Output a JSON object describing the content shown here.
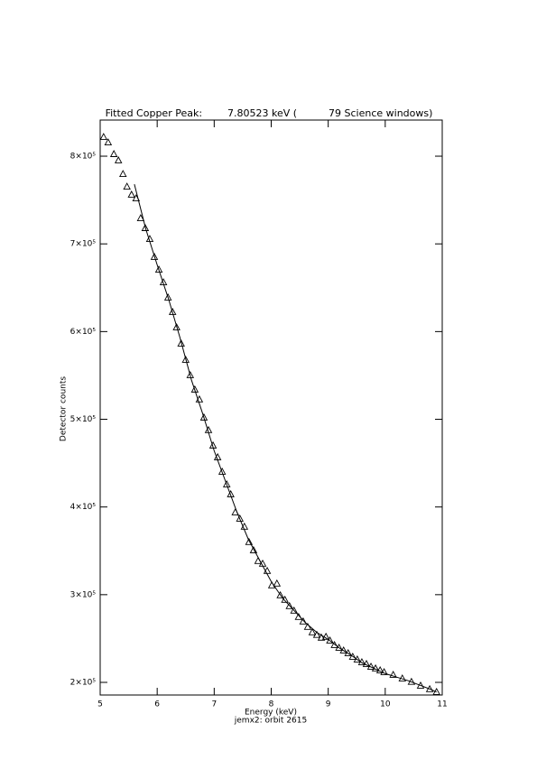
{
  "chart_data": {
    "type": "scatter",
    "title": "Fitted Copper Peak:        7.80523 keV (          79 Science windows)",
    "x_label": "Energy (keV)",
    "caption": "jemx2: orbit 2615",
    "y_label": "Detector counts",
    "xlim": [
      5,
      11
    ],
    "xticks": [
      5,
      6,
      7,
      8,
      9,
      10,
      11
    ],
    "ylim": [
      185600,
      841200
    ],
    "yticks": [
      {
        "value": 200000,
        "label": "2×10⁵"
      },
      {
        "value": 300000,
        "label": "3×10⁵"
      },
      {
        "value": 400000,
        "label": "4×10⁵"
      },
      {
        "value": 500000,
        "label": "5×10⁵"
      },
      {
        "value": 600000,
        "label": "6×10⁵"
      },
      {
        "value": 700000,
        "label": "7×10⁵"
      },
      {
        "value": 800000,
        "label": "8×10⁵"
      }
    ],
    "series": [
      {
        "marker": "triangle",
        "color": "#000000",
        "x": [
          5.06,
          5.14,
          5.24,
          5.32,
          5.4,
          5.47,
          5.55,
          5.63,
          5.71,
          5.79,
          5.87,
          5.95,
          6.03,
          6.11,
          6.19,
          6.27,
          6.34,
          6.42,
          6.5,
          6.58,
          6.66,
          6.74,
          6.82,
          6.9,
          6.98,
          7.06,
          7.14,
          7.22,
          7.29,
          7.37,
          7.45,
          7.53,
          7.61,
          7.69,
          7.77,
          7.85,
          7.93,
          8.01,
          8.1,
          8.16,
          8.24,
          8.32,
          8.4,
          8.48,
          8.56,
          8.64,
          8.72,
          8.8,
          8.88,
          8.96,
          9.03,
          9.11,
          9.19,
          9.27,
          9.35,
          9.43,
          9.51,
          9.59,
          9.67,
          9.75,
          9.83,
          9.91,
          9.98,
          10.14,
          10.3,
          10.46,
          10.62,
          10.78,
          10.9
        ],
        "values": [
          821600,
          815400,
          802100,
          794900,
          779400,
          765000,
          755800,
          751600,
          729000,
          717700,
          705300,
          684800,
          670300,
          655900,
          638500,
          622000,
          604500,
          586000,
          567500,
          550000,
          533600,
          522300,
          501700,
          487300,
          469800,
          456400,
          439900,
          425500,
          414200,
          393600,
          386400,
          377200,
          359700,
          350400,
          338100,
          335000,
          326800,
          310300,
          312400,
          299000,
          293900,
          286700,
          281500,
          274300,
          269200,
          263000,
          256800,
          253800,
          250700,
          251700,
          247400,
          242300,
          239200,
          236100,
          233000,
          228900,
          225800,
          222700,
          220700,
          217600,
          215600,
          213500,
          211400,
          208300,
          204200,
          200300,
          196000,
          192000,
          188800
        ]
      },
      {
        "style": "line",
        "color": "#000000",
        "x": [
          5.6,
          5.8,
          6.0,
          6.2,
          6.4,
          6.6,
          6.8,
          7.0,
          7.2,
          7.4,
          7.6,
          7.8,
          8.0,
          8.2,
          8.4,
          8.6,
          8.8,
          9.0,
          9.2,
          9.4,
          9.6,
          9.8,
          10.0,
          10.2,
          10.4,
          10.6,
          10.8,
          10.9
        ],
        "values": [
          768000,
          717000,
          676000,
          637000,
          593000,
          545000,
          506000,
          464000,
          429000,
          394000,
          363000,
          339000,
          315000,
          296000,
          282000,
          268000,
          257000,
          249000,
          239000,
          231000,
          222000,
          216000,
          210000,
          206000,
          202000,
          197000,
          192000,
          189000
        ]
      }
    ]
  }
}
